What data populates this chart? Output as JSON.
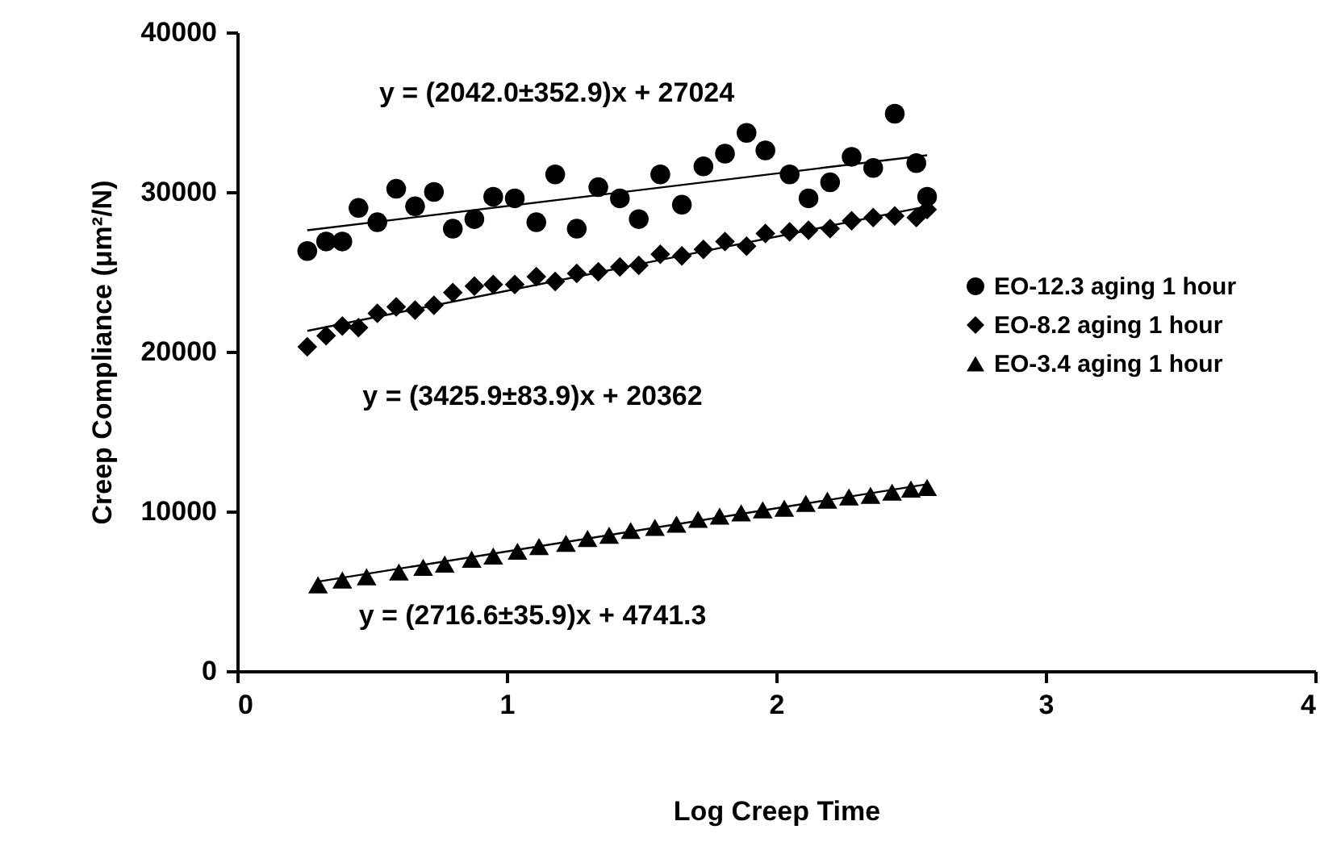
{
  "chart_data": {
    "type": "scatter",
    "xlabel": "Log Creep Time",
    "ylabel": "Creep Compliance (μm²/N)",
    "xlim": [
      0,
      4
    ],
    "xticks": [
      0,
      1,
      2,
      3,
      4
    ],
    "ylim": [
      0,
      40000
    ],
    "yticks": [
      0,
      10000,
      20000,
      30000,
      40000
    ],
    "grid": false,
    "legend": "right",
    "x": [
      0.26,
      0.33,
      0.39,
      0.45,
      0.52,
      0.59,
      0.66,
      0.73,
      0.8,
      0.88,
      0.95,
      1.03,
      1.11,
      1.18,
      1.26,
      1.34,
      1.42,
      1.49,
      1.57,
      1.65,
      1.73,
      1.81,
      1.89,
      1.96,
      2.05,
      2.12,
      2.2,
      2.28,
      2.36,
      2.44,
      2.52,
      2.56
    ],
    "series": [
      {
        "name": "EO-12.3 aging 1 hour",
        "marker": "circle",
        "color": "#000000",
        "values": [
          26300,
          26900,
          26900,
          29000,
          28100,
          30200,
          29100,
          30000,
          27700,
          28300,
          29700,
          29600,
          28100,
          31100,
          27700,
          30300,
          29600,
          28300,
          31100,
          29200,
          31600,
          32400,
          33700,
          32600,
          31100,
          29600,
          30600,
          32200,
          31500,
          34900,
          31800,
          29700
        ]
      },
      {
        "name": "EO-8.2 aging 1 hour",
        "marker": "diamond",
        "color": "#000000",
        "values": [
          20300,
          21000,
          21600,
          21500,
          22400,
          22800,
          22600,
          22900,
          23700,
          24100,
          24200,
          24200,
          24700,
          24400,
          24900,
          25000,
          25300,
          25400,
          26100,
          26000,
          26400,
          26900,
          26600,
          27400,
          27500,
          27600,
          27700,
          28200,
          28400,
          28500,
          28400,
          28900
        ]
      },
      {
        "name": "EO-3.4 aging 1 hour",
        "marker": "triangle",
        "color": "#000000",
        "x": [
          0.3,
          0.39,
          0.48,
          0.6,
          0.69,
          0.77,
          0.87,
          0.95,
          1.04,
          1.12,
          1.22,
          1.3,
          1.38,
          1.46,
          1.55,
          1.63,
          1.71,
          1.79,
          1.87,
          1.95,
          2.03,
          2.11,
          2.19,
          2.27,
          2.35,
          2.43,
          2.5,
          2.56
        ],
        "values": [
          5400,
          5700,
          5900,
          6200,
          6500,
          6700,
          7000,
          7200,
          7500,
          7800,
          8000,
          8300,
          8500,
          8800,
          9000,
          9200,
          9500,
          9700,
          9900,
          10100,
          10200,
          10500,
          10700,
          10900,
          11000,
          11200,
          11400,
          11500
        ]
      },
      {
        "type": "line",
        "color": "#000000",
        "x": [
          0.26,
          2.56
        ],
        "values": [
          27600,
          32300
        ]
      },
      {
        "type": "line",
        "color": "#000000",
        "x": [
          0.26,
          2.56
        ],
        "values": [
          21300,
          29100
        ]
      },
      {
        "type": "line",
        "color": "#000000",
        "x": [
          0.3,
          2.56
        ],
        "values": [
          5600,
          11700
        ]
      }
    ],
    "annotations": [
      "y = (2042.0±352.9)x + 27024",
      "y = (3425.9±83.9)x + 20362",
      "y = (2716.6±35.9)x + 4741.3"
    ]
  }
}
